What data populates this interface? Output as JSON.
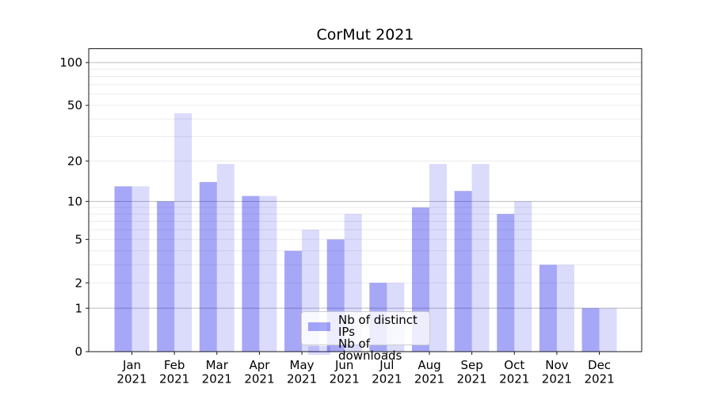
{
  "chart_data": {
    "type": "bar",
    "title": "CorMut 2021",
    "categories": [
      "Jan",
      "Feb",
      "Mar",
      "Apr",
      "May",
      "Jun",
      "Jul",
      "Aug",
      "Sep",
      "Oct",
      "Nov",
      "Dec"
    ],
    "year_suffix": "2021",
    "series": [
      {
        "name": "Nb of distinct IPs",
        "color": "rgba(2,2,233,0.35)",
        "values": [
          13,
          10,
          14,
          11,
          4,
          5,
          2,
          9,
          12,
          8,
          3,
          1
        ]
      },
      {
        "name": "Nb of downloads",
        "color": "rgba(2,2,233,0.14)",
        "values": [
          13,
          44,
          19,
          11,
          6,
          8,
          2,
          19,
          19,
          10,
          3,
          1
        ]
      }
    ],
    "y_ticks": [
      0,
      1,
      2,
      5,
      10,
      20,
      50,
      100
    ],
    "y_scale": "log1p",
    "y_max": 125,
    "ylim": [
      0,
      125
    ],
    "xlabel": "",
    "ylabel": "",
    "grid": true,
    "legend_position": "lower center",
    "colors": {
      "major_grid": "#bcbcbc",
      "minor_grid": "#ebebeb",
      "axis": "#1a1a1a",
      "text": "#000000",
      "background": "#ffffff"
    }
  }
}
